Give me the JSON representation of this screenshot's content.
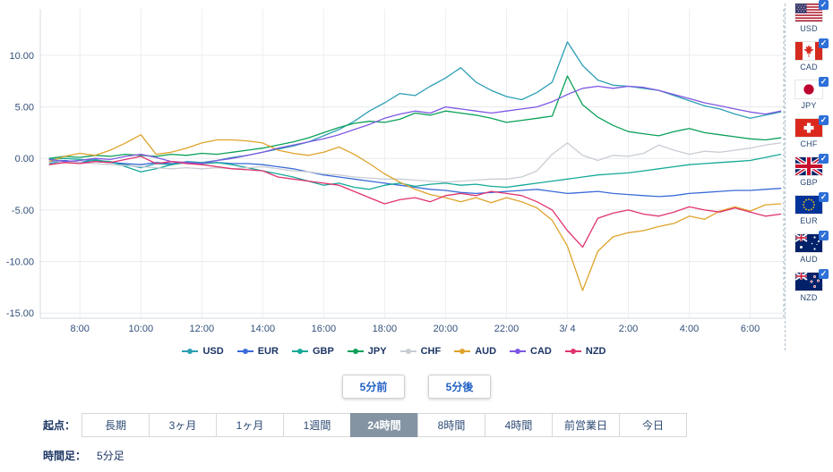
{
  "chart_data": {
    "type": "line",
    "title": "",
    "xlabel": "",
    "ylabel": "",
    "grid": true,
    "legend_position": "bottom",
    "xlim": [
      6.7,
      31.1
    ],
    "ylim": [
      -15.5,
      14.5
    ],
    "x_tick_values": [
      8,
      10,
      12,
      14,
      16,
      18,
      20,
      22,
      24,
      26,
      28,
      30
    ],
    "x_tick_labels": [
      "8:00",
      "10:00",
      "12:00",
      "14:00",
      "16:00",
      "18:00",
      "20:00",
      "22:00",
      "3/ 4",
      "2:00",
      "4:00",
      "6:00"
    ],
    "y_tick_values": [
      10,
      5,
      0,
      -5,
      -10,
      -15
    ],
    "y_tick_labels": [
      "10.00",
      "5.00",
      "0.00",
      "-5.00",
      "-10.00",
      "-15.00"
    ],
    "x": [
      7,
      7.5,
      8,
      8.5,
      9,
      9.5,
      10,
      10.5,
      11,
      11.5,
      12,
      12.5,
      13,
      13.5,
      14,
      14.5,
      15,
      15.5,
      16,
      16.5,
      17,
      17.5,
      18,
      18.5,
      19,
      19.5,
      20,
      20.5,
      21,
      21.5,
      22,
      22.5,
      23,
      23.5,
      24,
      24.5,
      25,
      25.5,
      26,
      26.5,
      27,
      27.5,
      28,
      28.5,
      29,
      29.5,
      30,
      30.5,
      31
    ],
    "series": [
      {
        "name": "USD",
        "color": "#2d9fb4",
        "values": [
          -0.5,
          -0.2,
          -0.4,
          -0.1,
          -0.4,
          -0.6,
          -0.9,
          -0.5,
          -0.6,
          -0.3,
          -0.4,
          -0.2,
          0.1,
          0.3,
          0.6,
          0.9,
          1.2,
          1.6,
          2.2,
          2.8,
          3.6,
          4.6,
          5.4,
          6.3,
          6.1,
          7.0,
          7.8,
          8.8,
          7.4,
          6.6,
          6.0,
          5.7,
          6.4,
          7.4,
          11.3,
          9.0,
          7.6,
          7.1,
          7.0,
          6.8,
          6.6,
          6.1,
          5.6,
          5.1,
          4.8,
          4.3,
          3.9,
          4.2,
          4.5
        ]
      },
      {
        "name": "EUR",
        "color": "#3a6bd8",
        "values": [
          -0.3,
          -0.2,
          -0.4,
          -0.3,
          -0.4,
          -0.5,
          -0.6,
          -0.4,
          -0.5,
          -0.4,
          -0.5,
          -0.4,
          -0.5,
          -0.5,
          -0.6,
          -0.8,
          -1.0,
          -1.3,
          -1.6,
          -1.8,
          -2.0,
          -2.2,
          -2.4,
          -2.6,
          -2.8,
          -3.0,
          -3.1,
          -3.3,
          -3.4,
          -3.3,
          -3.2,
          -3.1,
          -3.0,
          -3.2,
          -3.4,
          -3.3,
          -3.2,
          -3.4,
          -3.5,
          -3.6,
          -3.7,
          -3.6,
          -3.4,
          -3.3,
          -3.2,
          -3.1,
          -3.1,
          -3.0,
          -2.9
        ]
      },
      {
        "name": "GBP",
        "color": "#16a998",
        "values": [
          -0.1,
          0.0,
          -0.1,
          -0.2,
          -0.3,
          -0.8,
          -1.3,
          -1.0,
          -0.6,
          -0.4,
          -0.5,
          -0.4,
          -0.6,
          -0.9,
          -1.2,
          -1.5,
          -1.8,
          -2.2,
          -2.6,
          -2.4,
          -2.8,
          -3.0,
          -2.6,
          -2.4,
          -2.7,
          -2.5,
          -2.4,
          -2.6,
          -2.5,
          -2.7,
          -2.8,
          -2.6,
          -2.4,
          -2.2,
          -2.0,
          -1.8,
          -1.6,
          -1.5,
          -1.4,
          -1.2,
          -1.0,
          -0.8,
          -0.6,
          -0.5,
          -0.4,
          -0.3,
          -0.2,
          0.1,
          0.4
        ]
      },
      {
        "name": "JPY",
        "color": "#0aa058",
        "values": [
          0.0,
          0.2,
          0.1,
          0.3,
          0.2,
          0.4,
          0.3,
          0.2,
          0.4,
          0.3,
          0.5,
          0.4,
          0.6,
          0.8,
          1.0,
          1.3,
          1.6,
          2.0,
          2.5,
          3.0,
          3.4,
          3.6,
          3.5,
          3.8,
          4.4,
          4.2,
          4.6,
          4.4,
          4.2,
          3.9,
          3.5,
          3.7,
          3.9,
          4.1,
          8.0,
          5.2,
          4.0,
          3.2,
          2.6,
          2.4,
          2.2,
          2.6,
          2.9,
          2.5,
          2.3,
          2.1,
          1.9,
          1.8,
          2.0
        ]
      },
      {
        "name": "CHF",
        "color": "#c9cdd4",
        "values": [
          -0.2,
          -0.3,
          -0.4,
          -0.5,
          -0.6,
          -0.7,
          -0.8,
          -0.9,
          -1.0,
          -0.9,
          -1.0,
          -0.9,
          -1.0,
          -0.9,
          -0.8,
          -1.0,
          -1.2,
          -1.3,
          -1.5,
          -1.6,
          -1.8,
          -1.9,
          -2.0,
          -2.0,
          -2.1,
          -2.2,
          -2.3,
          -2.2,
          -2.1,
          -2.0,
          -2.0,
          -1.8,
          -1.2,
          0.4,
          1.5,
          0.3,
          -0.2,
          0.3,
          0.2,
          0.5,
          1.3,
          0.8,
          0.4,
          0.7,
          0.6,
          0.8,
          1.0,
          1.3,
          1.5
        ]
      },
      {
        "name": "AUD",
        "color": "#dfa32b",
        "values": [
          -0.3,
          0.2,
          0.5,
          0.3,
          0.8,
          1.5,
          2.3,
          0.4,
          0.6,
          1.0,
          1.5,
          1.8,
          1.8,
          1.7,
          1.5,
          0.8,
          0.5,
          0.3,
          0.6,
          1.1,
          0.4,
          -0.5,
          -1.5,
          -2.3,
          -3.0,
          -3.5,
          -3.8,
          -4.2,
          -3.8,
          -4.3,
          -3.8,
          -4.2,
          -4.8,
          -6.0,
          -8.5,
          -12.8,
          -9.0,
          -7.6,
          -7.2,
          -7.0,
          -6.6,
          -6.3,
          -5.6,
          -5.9,
          -5.1,
          -4.7,
          -5.1,
          -4.5,
          -4.4
        ]
      },
      {
        "name": "CAD",
        "color": "#7e57e2",
        "values": [
          -0.1,
          -0.3,
          -0.2,
          0.0,
          -0.1,
          0.2,
          0.4,
          0.1,
          -0.3,
          -0.4,
          -0.5,
          -0.2,
          0.0,
          0.3,
          0.6,
          1.0,
          1.3,
          1.6,
          1.9,
          2.3,
          2.8,
          3.3,
          3.9,
          4.3,
          4.6,
          4.4,
          5.0,
          4.8,
          4.6,
          4.4,
          4.6,
          4.8,
          5.0,
          5.5,
          6.2,
          6.8,
          7.0,
          6.8,
          7.0,
          6.9,
          6.6,
          6.2,
          5.8,
          5.4,
          5.1,
          4.8,
          4.5,
          4.3,
          4.6
        ]
      },
      {
        "name": "NZD",
        "color": "#e0336e",
        "values": [
          -0.6,
          -0.4,
          -0.5,
          -0.3,
          -0.4,
          -0.1,
          0.2,
          -0.5,
          -0.3,
          -0.5,
          -0.6,
          -0.8,
          -1.0,
          -1.1,
          -1.2,
          -1.8,
          -2.0,
          -2.2,
          -2.4,
          -2.6,
          -3.2,
          -3.8,
          -4.4,
          -4.0,
          -3.8,
          -4.2,
          -3.6,
          -3.4,
          -3.6,
          -3.2,
          -3.4,
          -3.6,
          -4.2,
          -5.0,
          -7.0,
          -8.6,
          -5.8,
          -5.3,
          -5.0,
          -5.4,
          -5.6,
          -5.2,
          -4.7,
          -5.0,
          -5.2,
          -4.8,
          -5.2,
          -5.6,
          -5.4
        ]
      }
    ]
  },
  "sidebar": {
    "items": [
      {
        "code": "USD",
        "checked": true
      },
      {
        "code": "CAD",
        "checked": true
      },
      {
        "code": "JPY",
        "checked": true
      },
      {
        "code": "CHF",
        "checked": true
      },
      {
        "code": "GBP",
        "checked": true
      },
      {
        "code": "EUR",
        "checked": true
      },
      {
        "code": "AUD",
        "checked": true
      },
      {
        "code": "NZD",
        "checked": true
      }
    ]
  },
  "controls": {
    "prev_label": "5分前",
    "next_label": "5分後"
  },
  "period": {
    "label": "起点：",
    "options": [
      {
        "label": "長期",
        "active": false
      },
      {
        "label": "3ヶ月",
        "active": false
      },
      {
        "label": "1ヶ月",
        "active": false
      },
      {
        "label": "1週間",
        "active": false
      },
      {
        "label": "24時間",
        "active": true
      },
      {
        "label": "8時間",
        "active": false
      },
      {
        "label": "4時間",
        "active": false
      },
      {
        "label": "前営業日",
        "active": false
      },
      {
        "label": "今日",
        "active": false
      }
    ]
  },
  "footer": {
    "label": "時間足：",
    "value": "5分足"
  },
  "colors": {
    "checkbox": "#2e6fd8",
    "active_period_bg": "#8494a3",
    "axis_text": "#33507a"
  }
}
